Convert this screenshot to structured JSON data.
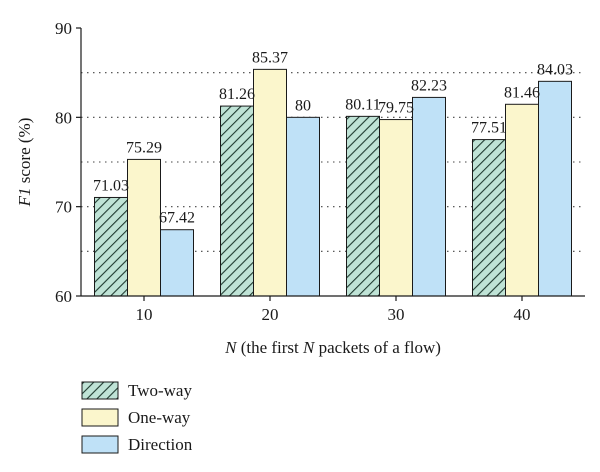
{
  "chart_data": {
    "type": "bar",
    "xlabel_parts": [
      "N",
      " (the first ",
      "N",
      " packets of a flow)"
    ],
    "ylabel_parts": [
      "F1",
      " score (%)"
    ],
    "categories": [
      "10",
      "20",
      "30",
      "40"
    ],
    "ylim": [
      60,
      90
    ],
    "yticks": [
      "60",
      "70",
      "80",
      "90"
    ],
    "ytick_values": [
      60,
      70,
      80,
      90
    ],
    "grid": "dotted horizontal lines",
    "grid_values": [
      65,
      75,
      85
    ],
    "legend_position": "bottom-left, below the plot",
    "series": [
      {
        "name": "Two-way",
        "values": [
          71.03,
          81.26,
          80.11,
          77.51
        ],
        "labels": [
          "71.03",
          "81.26",
          "80.11",
          "77.51"
        ],
        "fill": "#bfe3d6",
        "hatch": true
      },
      {
        "name": "One-way",
        "values": [
          75.29,
          85.37,
          79.75,
          81.46
        ],
        "labels": [
          "75.29",
          "85.37",
          "79.75",
          "81.46"
        ],
        "fill": "#fbf6cc",
        "hatch": false
      },
      {
        "name": "Direction",
        "values": [
          67.42,
          80,
          82.23,
          84.03
        ],
        "labels": [
          "67.42",
          "80",
          "82.23",
          "84.03"
        ],
        "fill": "#bfe1f7",
        "hatch": false
      }
    ]
  }
}
